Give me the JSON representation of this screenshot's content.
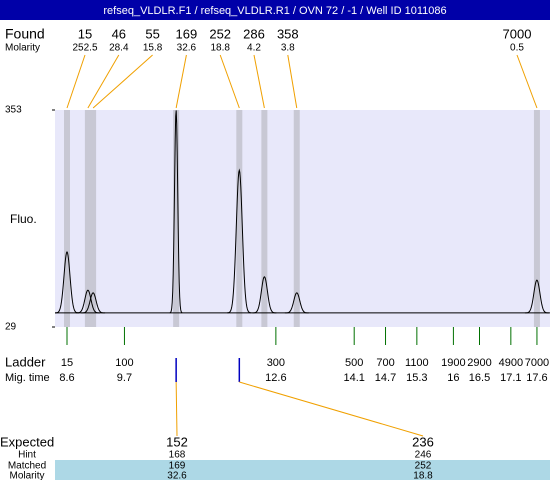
{
  "chart_data": {
    "type": "electropherogram",
    "title": "refseq_VLDLR.F1 / refseq_VLDLR.R1 / OVN 72 / -1 / Well ID 1011086",
    "ylabel": "Fluo.",
    "ylim": [
      29,
      353
    ],
    "yticks": [
      29,
      353
    ],
    "xlim": [
      8.37,
      17.85
    ],
    "baseline": 50,
    "found": {
      "label": "Found",
      "sublabel": "Molarity",
      "sizes": [
        15,
        46,
        55,
        169,
        252,
        286,
        358,
        7000
      ],
      "molarity": [
        252.5,
        28.4,
        15.8,
        32.6,
        18.8,
        4.2,
        3.8,
        0.5
      ],
      "times": [
        8.6,
        9.0,
        9.1,
        10.69,
        11.9,
        12.38,
        13.0,
        17.6
      ],
      "heights": [
        141,
        84,
        80,
        353,
        263,
        104,
        80,
        99
      ]
    },
    "ladder": {
      "label": "Ladder",
      "sublabel": "Mig. time",
      "sizes": [
        15,
        100,
        300,
        500,
        700,
        1100,
        1900,
        2900,
        4900,
        7000
      ],
      "times": [
        8.6,
        9.7,
        12.6,
        14.1,
        14.7,
        15.3,
        16,
        16.5,
        17.1,
        17.6
      ]
    },
    "expected": {
      "label": "Expected",
      "rows": [
        "Hint",
        "Matched",
        "Molarity"
      ],
      "sizes": [
        152,
        236
      ],
      "hint": [
        168,
        246
      ],
      "matched": [
        169,
        252
      ],
      "molarity": [
        32.6,
        18.8
      ]
    }
  }
}
